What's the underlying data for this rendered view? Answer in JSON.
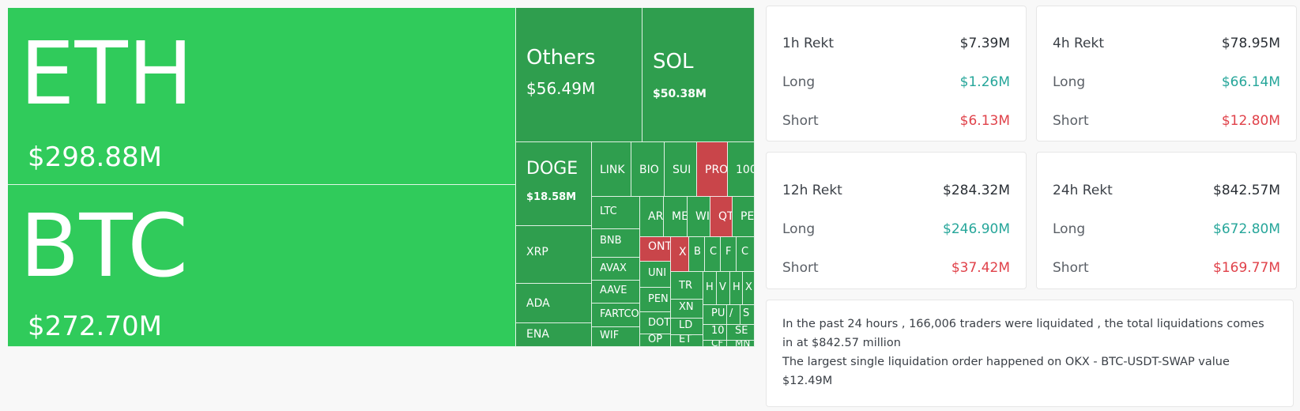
{
  "treemap": {
    "tiles": [
      {
        "id": "eth",
        "symbol": "ETH",
        "amount": "$298.88M",
        "status": "long"
      },
      {
        "id": "btc",
        "symbol": "BTC",
        "amount": "$272.70M",
        "status": "long"
      },
      {
        "id": "others",
        "symbol": "Others",
        "amount": "$56.49M",
        "status": "long"
      },
      {
        "id": "sol",
        "symbol": "SOL",
        "amount": "$50.38M",
        "status": "long"
      },
      {
        "id": "doge",
        "symbol": "DOGE",
        "amount": "$18.58M",
        "status": "long"
      },
      {
        "id": "xrp",
        "symbol": "XRP",
        "status": "long"
      },
      {
        "id": "ada",
        "symbol": "ADA",
        "status": "long"
      },
      {
        "id": "ena",
        "symbol": "ENA",
        "status": "long"
      },
      {
        "id": "link",
        "symbol": "LINK",
        "status": "long"
      },
      {
        "id": "bio",
        "symbol": "BIO",
        "status": "long"
      },
      {
        "id": "sui",
        "symbol": "SUI",
        "status": "long"
      },
      {
        "id": "pro",
        "symbol": "PRO",
        "status": "short"
      },
      {
        "id": "100",
        "symbol": "100",
        "status": "long"
      },
      {
        "id": "ltc",
        "symbol": "LTC",
        "status": "long"
      },
      {
        "id": "ar",
        "symbol": "AR",
        "status": "long"
      },
      {
        "id": "me",
        "symbol": "ME",
        "status": "long"
      },
      {
        "id": "wi",
        "symbol": "WI",
        "status": "long"
      },
      {
        "id": "qt",
        "symbol": "QT",
        "status": "short"
      },
      {
        "id": "pe",
        "symbol": "PE",
        "status": "long"
      },
      {
        "id": "bnb",
        "symbol": "BNB",
        "status": "long"
      },
      {
        "id": "ont",
        "symbol": "ONT",
        "status": "short"
      },
      {
        "id": "x",
        "symbol": "X",
        "status": "short"
      },
      {
        "id": "b",
        "symbol": "B",
        "status": "long"
      },
      {
        "id": "c",
        "symbol": "C",
        "status": "long"
      },
      {
        "id": "f",
        "symbol": "F",
        "status": "long"
      },
      {
        "id": "o",
        "symbol": "C",
        "status": "long"
      },
      {
        "id": "avax",
        "symbol": "AVAX",
        "status": "long"
      },
      {
        "id": "uni",
        "symbol": "UNI",
        "status": "long"
      },
      {
        "id": "tr",
        "symbol": "TR",
        "status": "long"
      },
      {
        "id": "h1",
        "symbol": "H",
        "status": "long"
      },
      {
        "id": "v",
        "symbol": "V",
        "status": "long"
      },
      {
        "id": "h2",
        "symbol": "H",
        "status": "long"
      },
      {
        "id": "x2",
        "symbol": "X",
        "status": "long"
      },
      {
        "id": "aave",
        "symbol": "AAVE",
        "status": "long"
      },
      {
        "id": "pen",
        "symbol": "PEN",
        "status": "long"
      },
      {
        "id": "xn",
        "symbol": "XN",
        "status": "long"
      },
      {
        "id": "pu",
        "symbol": "PU",
        "status": "long"
      },
      {
        "id": "sl",
        "symbol": "/",
        "status": "long"
      },
      {
        "id": "s",
        "symbol": "S",
        "status": "long"
      },
      {
        "id": "fartco",
        "symbol": "FARTCO",
        "status": "long"
      },
      {
        "id": "dot",
        "symbol": "DOT",
        "status": "long"
      },
      {
        "id": "ld",
        "symbol": "LD",
        "status": "long"
      },
      {
        "id": "t10",
        "symbol": "10",
        "status": "long"
      },
      {
        "id": "wif",
        "symbol": "WIF",
        "status": "long"
      },
      {
        "id": "op",
        "symbol": "OP",
        "status": "long"
      },
      {
        "id": "et",
        "symbol": "ET",
        "status": "long"
      },
      {
        "id": "cf",
        "symbol": "CF",
        "status": "long"
      },
      {
        "id": "se",
        "symbol": "SE",
        "status": "long"
      },
      {
        "id": "mn",
        "symbol": "MN",
        "status": "long"
      }
    ]
  },
  "cards": [
    {
      "period": "1h Rekt",
      "total": "$7.39M",
      "long_label": "Long",
      "long": "$1.26M",
      "short_label": "Short",
      "short": "$6.13M"
    },
    {
      "period": "4h Rekt",
      "total": "$78.95M",
      "long_label": "Long",
      "long": "$66.14M",
      "short_label": "Short",
      "short": "$12.80M"
    },
    {
      "period": "12h Rekt",
      "total": "$284.32M",
      "long_label": "Long",
      "long": "$246.90M",
      "short_label": "Short",
      "short": "$37.42M"
    },
    {
      "period": "24h Rekt",
      "total": "$842.57M",
      "long_label": "Long",
      "long": "$672.80M",
      "short_label": "Short",
      "short": "$169.77M"
    }
  ],
  "summary": {
    "line1": "In the past 24 hours , 166,006 traders were liquidated , the total liquidations comes in at $842.57 million",
    "line2": "The largest single liquidation order happened on OKX - BTC-USDT-SWAP value $12.49M"
  },
  "colors": {
    "long": "#26a69a",
    "short": "#e0424a",
    "treemap_major": "#30cb5b",
    "treemap_minor": "#2f9e4e",
    "treemap_red": "#c9454a"
  }
}
